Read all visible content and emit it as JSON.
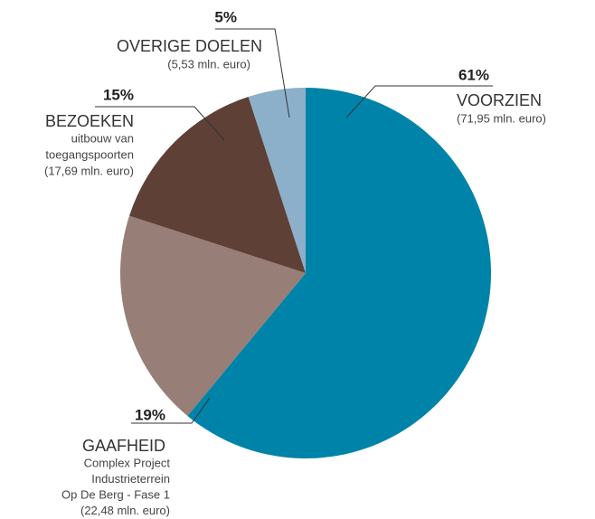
{
  "chart_data": {
    "type": "pie",
    "categories": [
      "VOORZIEN",
      "GAAFHEID",
      "BEZOEKEN",
      "OVERIGE DOELEN"
    ],
    "values": [
      61,
      19,
      15,
      5
    ],
    "value_labels": [
      "61%",
      "19%",
      "15%",
      "5%"
    ],
    "colors": [
      "#0083a9",
      "#977e76",
      "#5e4037",
      "#8cb0c9"
    ],
    "details": [
      [
        "(71,95 mln. euro)"
      ],
      [
        "Complex Project",
        "Industrieterrein",
        "Op De Berg - Fase 1",
        "(22,48 mln. euro)"
      ],
      [
        "uitbouw van",
        "toegangspoorten",
        "(17,69 mln. euro)"
      ],
      [
        "(5,53 mln. euro)"
      ]
    ]
  }
}
